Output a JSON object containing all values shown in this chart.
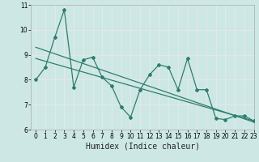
{
  "title": "",
  "xlabel": "Humidex (Indice chaleur)",
  "ylabel": "",
  "bg_color": "#cde8e4",
  "line_color": "#2e7d6e",
  "grid_color": "#f5f5f5",
  "xmin": -0.5,
  "xmax": 23,
  "ymin": 6,
  "ymax": 11,
  "line1_x": [
    0,
    1,
    2,
    3,
    4,
    5,
    6,
    7,
    8,
    9,
    10,
    11,
    12,
    13,
    14,
    15,
    16,
    17,
    18,
    19,
    20,
    21,
    22,
    23
  ],
  "line1_y": [
    8.0,
    8.5,
    9.7,
    10.8,
    7.7,
    8.8,
    8.9,
    8.1,
    7.75,
    6.9,
    6.5,
    7.6,
    8.2,
    8.6,
    8.5,
    7.6,
    8.85,
    7.6,
    7.6,
    6.45,
    6.4,
    6.55,
    6.55,
    6.35
  ],
  "trend_x": [
    0,
    23
  ],
  "trend_y": [
    9.3,
    6.3
  ],
  "trend2_x": [
    0,
    23
  ],
  "trend2_y": [
    8.85,
    6.35
  ],
  "yticks": [
    6,
    7,
    8,
    9,
    10,
    11
  ],
  "xticks": [
    0,
    1,
    2,
    3,
    4,
    5,
    6,
    7,
    8,
    9,
    10,
    11,
    12,
    13,
    14,
    15,
    16,
    17,
    18,
    19,
    20,
    21,
    22,
    23
  ],
  "tick_fontsize": 5.5,
  "xlabel_fontsize": 7.0
}
